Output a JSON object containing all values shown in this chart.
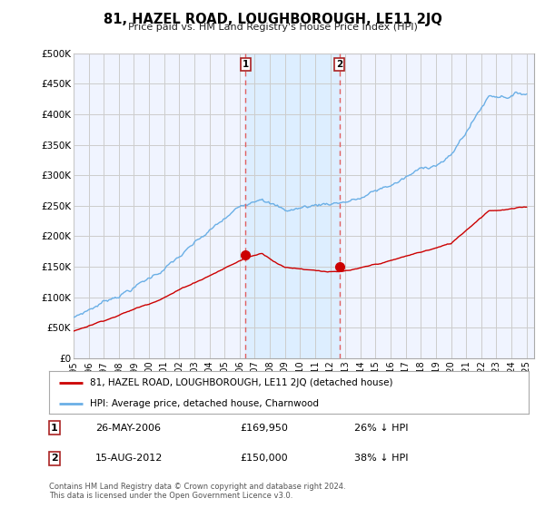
{
  "title": "81, HAZEL ROAD, LOUGHBOROUGH, LE11 2JQ",
  "subtitle": "Price paid vs. HM Land Registry's House Price Index (HPI)",
  "ylabel_ticks": [
    "£0",
    "£50K",
    "£100K",
    "£150K",
    "£200K",
    "£250K",
    "£300K",
    "£350K",
    "£400K",
    "£450K",
    "£500K"
  ],
  "ytick_values": [
    0,
    50000,
    100000,
    150000,
    200000,
    250000,
    300000,
    350000,
    400000,
    450000,
    500000
  ],
  "ylim": [
    0,
    500000
  ],
  "xlim_start": 1995.0,
  "xlim_end": 2025.5,
  "hpi_color": "#6aafe6",
  "property_color": "#cc0000",
  "vline_color": "#e06060",
  "shade_color": "#ddeeff",
  "purchase_1_x": 2006.38,
  "purchase_1_y": 169950,
  "purchase_2_x": 2012.62,
  "purchase_2_y": 150000,
  "purchase_1_label": "26-MAY-2006",
  "purchase_2_label": "15-AUG-2012",
  "purchase_1_price": "£169,950",
  "purchase_2_price": "£150,000",
  "purchase_1_hpi": "26% ↓ HPI",
  "purchase_2_hpi": "38% ↓ HPI",
  "legend_property": "81, HAZEL ROAD, LOUGHBOROUGH, LE11 2JQ (detached house)",
  "legend_hpi": "HPI: Average price, detached house, Charnwood",
  "footer": "Contains HM Land Registry data © Crown copyright and database right 2024.\nThis data is licensed under the Open Government Licence v3.0.",
  "bg_color": "#ffffff",
  "plot_bg_color": "#f0f4ff",
  "grid_color": "#cccccc"
}
